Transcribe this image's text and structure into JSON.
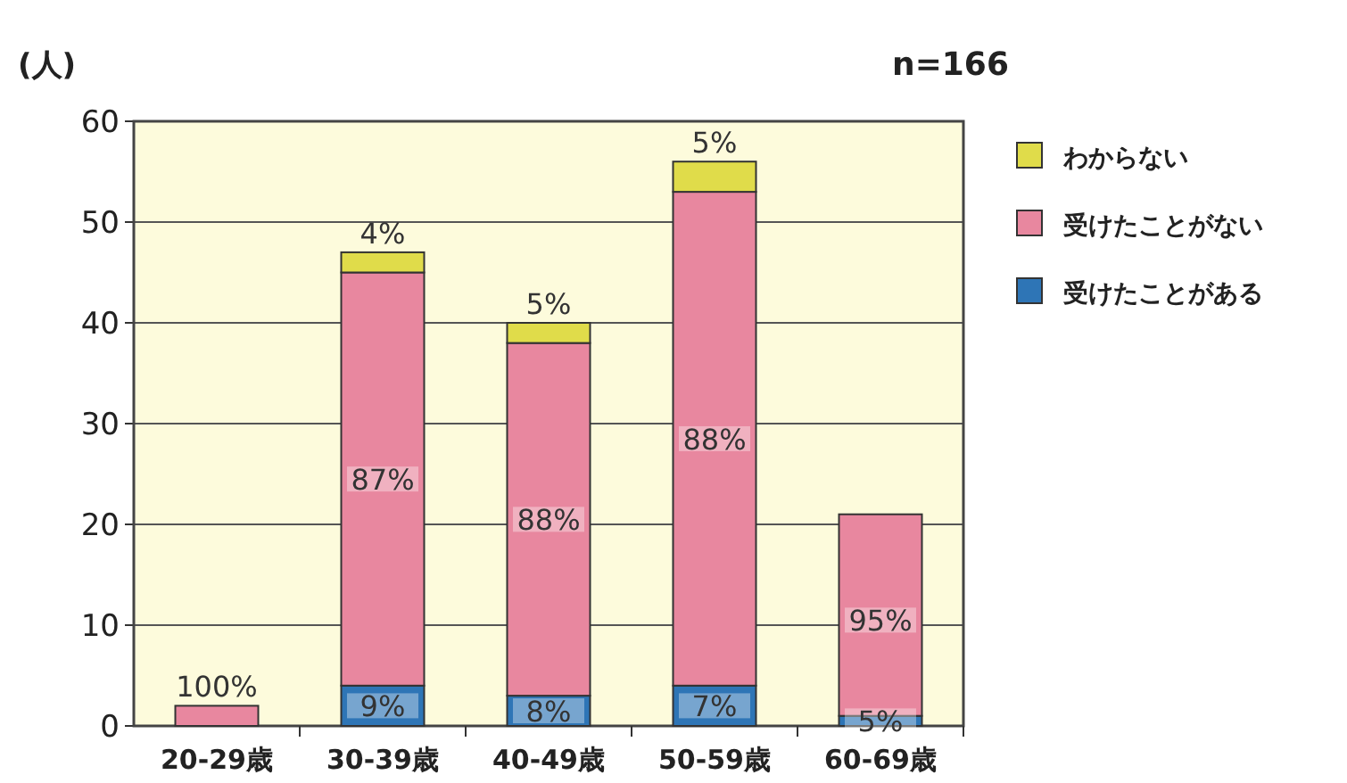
{
  "chart_data": {
    "type": "bar",
    "stacked": true,
    "ylabel": "(人)",
    "annotations": [
      "n=166",
      {
        "text": "9%",
        "x": "30-39歳",
        "y": 2
      },
      {
        "text": "8%",
        "x": "40-49歳",
        "y": 1.5
      },
      {
        "text": "7%",
        "x": "50-59歳",
        "y": 2
      },
      {
        "text": "5%",
        "x": "60-69歳",
        "y": 0.5
      },
      {
        "text": "100%",
        "x": "20-29歳",
        "y": 2
      },
      {
        "text": "87%",
        "x": "30-39歳",
        "y": 24.5
      },
      {
        "text": "88%",
        "x": "40-49歳",
        "y": 20.5
      },
      {
        "text": "88%",
        "x": "50-59歳",
        "y": 28.5
      },
      {
        "text": "95%",
        "x": "60-69歳",
        "y": 10.5
      },
      {
        "text": "4%",
        "x": "30-39歳",
        "y": 47
      },
      {
        "text": "5%",
        "x": "40-49歳",
        "y": 40
      },
      {
        "text": "5%",
        "x": "50-59歳",
        "y": 56
      }
    ],
    "categories": [
      "20-29歳",
      "30-39歳",
      "40-49歳",
      "50-59歳",
      "60-69歳"
    ],
    "series": [
      {
        "name": "受けたことがある",
        "color": "#2e75b6",
        "values": [
          0,
          4,
          3,
          4,
          1
        ]
      },
      {
        "name": "受けたことがない",
        "color": "#e8879f",
        "values": [
          2,
          41,
          35,
          49,
          20
        ]
      },
      {
        "name": "わからない",
        "color": "#e0dc4a",
        "values": [
          0,
          2,
          2,
          3,
          0
        ]
      }
    ],
    "ylim": [
      0,
      60
    ],
    "yticks": [
      0,
      10,
      20,
      30,
      40,
      50,
      60
    ],
    "grid": "y",
    "legend": "right"
  }
}
